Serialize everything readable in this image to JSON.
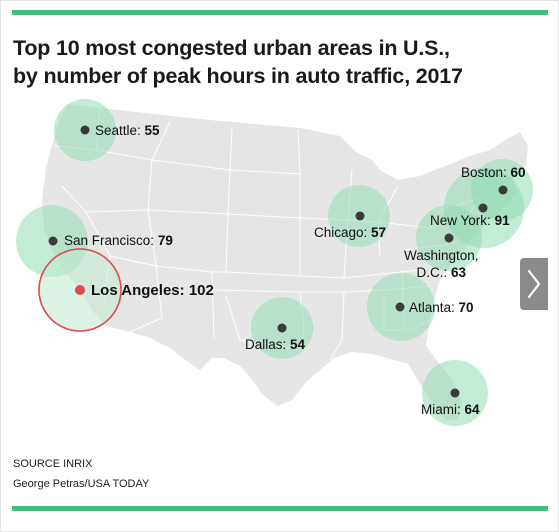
{
  "title_line1": "Top 10 most congested urban areas in U.S.,",
  "title_line2": "by number of peak hours in auto traffic, 2017",
  "colors": {
    "accent_green": "#3ec07c",
    "circle_fill": "#8fdcb2",
    "highlight_red": "#e04a4f",
    "land": "#e6e6e6",
    "state_lines": "#ffffff",
    "nav_button": "#8a8a8a"
  },
  "cities": [
    {
      "id": "seattle",
      "name": "Seattle",
      "hours": "55",
      "sep": ": "
    },
    {
      "id": "san-francisco",
      "name": "San Francisco",
      "hours": "79",
      "sep": ": "
    },
    {
      "id": "los-angeles",
      "name": "Los Angeles",
      "hours": "102",
      "sep": ": "
    },
    {
      "id": "dallas",
      "name": "Dallas",
      "hours": "54",
      "sep": ": "
    },
    {
      "id": "chicago",
      "name": "Chicago",
      "hours": "57",
      "sep": ": "
    },
    {
      "id": "atlanta",
      "name": "Atlanta",
      "hours": "70",
      "sep": ": "
    },
    {
      "id": "miami",
      "name": "Miami",
      "hours": "64",
      "sep": ": "
    },
    {
      "id": "boston",
      "name": "Boston",
      "hours": "60",
      "sep": ": "
    },
    {
      "id": "new-york",
      "name": "New York",
      "hours": "91",
      "sep": ": "
    },
    {
      "id": "washington",
      "name": "Washington,",
      "name2": "D.C.",
      "hours": "63",
      "sep": ": "
    }
  ],
  "source": "SOURCE INRIX",
  "credit": "George Petras/USA TODAY",
  "next_icon": "chevron-right-icon"
}
